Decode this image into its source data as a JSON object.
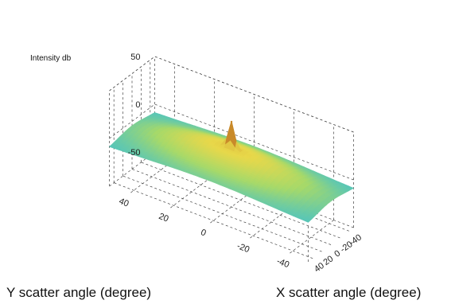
{
  "chart_data": {
    "type": "surface",
    "zlabel": "Intensity db",
    "xlabel": "X scatter angle (degree)",
    "ylabel": "Y scatter angle (degree)",
    "x_ticks": [
      -40,
      -20,
      0,
      20,
      40
    ],
    "y_ticks": [
      40,
      20,
      0,
      -20,
      -40
    ],
    "z_ticks": [
      50,
      0,
      -50
    ],
    "xlim": [
      -50,
      50
    ],
    "ylim": [
      -50,
      50
    ],
    "zlim": [
      -50,
      50
    ],
    "surface": {
      "baseline_db": -10,
      "peak_db": 40,
      "peak_at": [
        0,
        0
      ],
      "description_colors": {
        "low": "#4cc3c3",
        "mid": "#a6d96a",
        "high": "#e8d84a",
        "peak": "#c98a2a"
      }
    },
    "grid": true
  }
}
